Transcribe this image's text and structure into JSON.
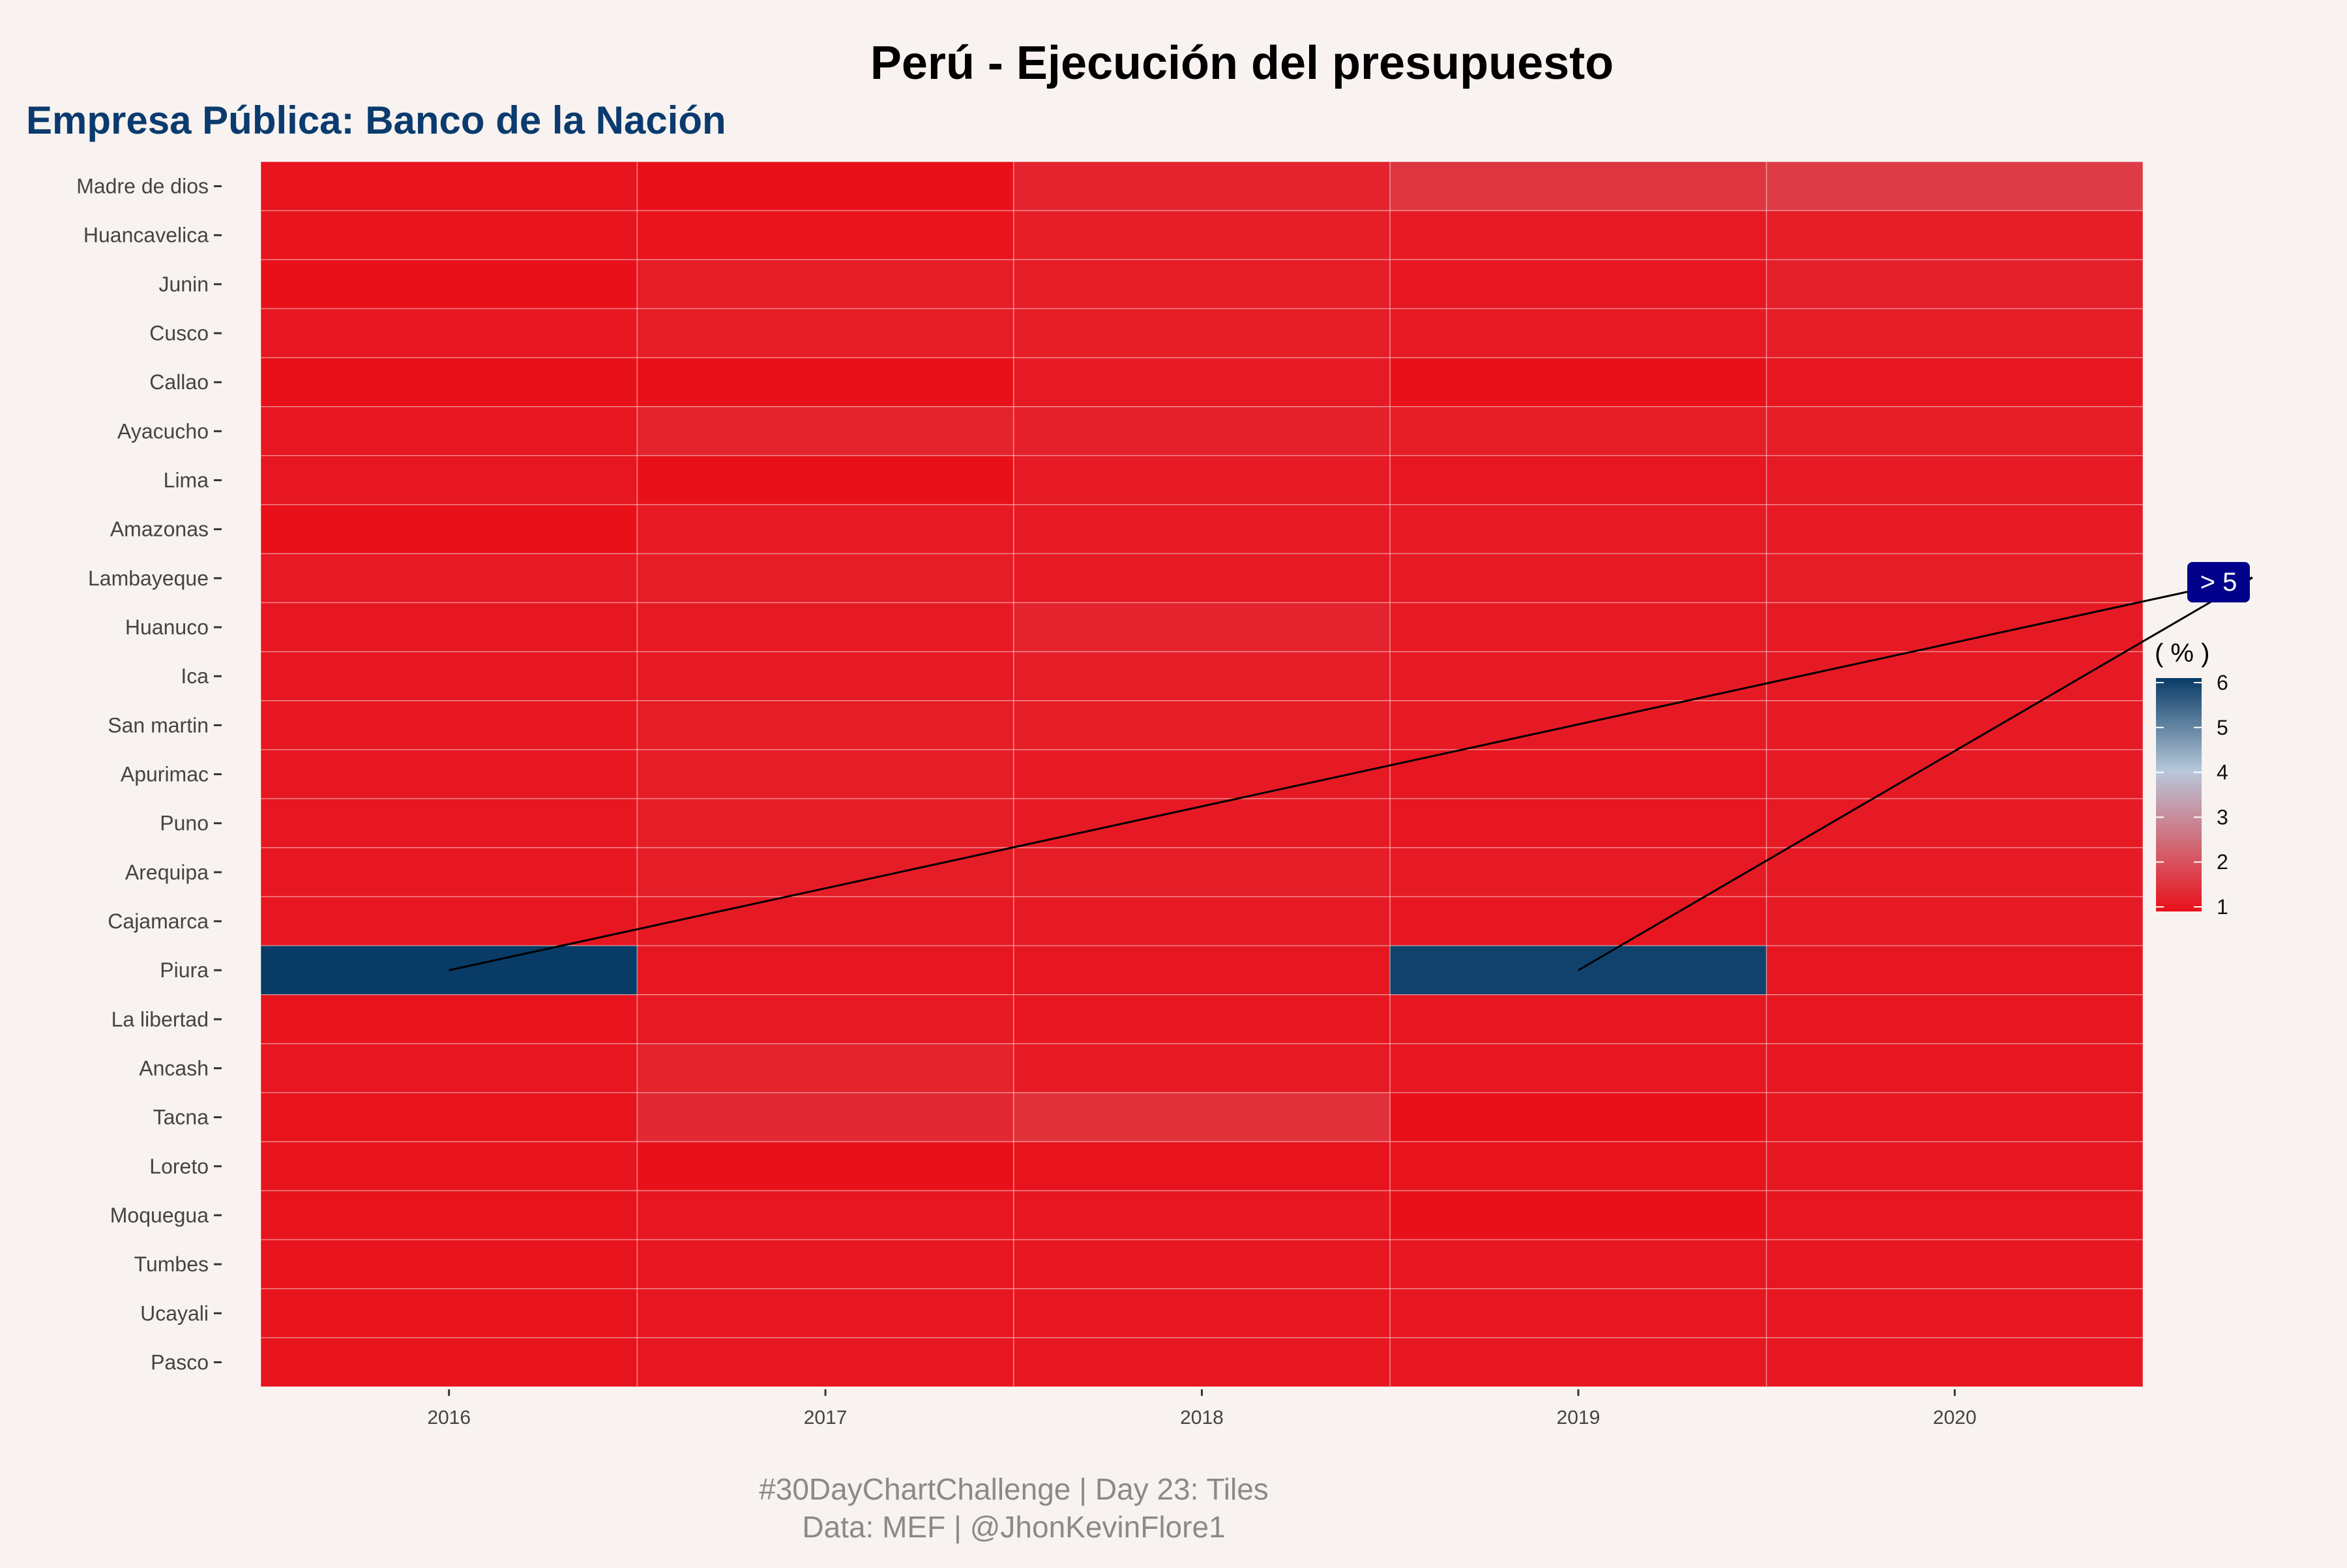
{
  "title": "Perú - Ejecución del presupuesto",
  "subtitle": "Empresa Pública: Banco de la Nación",
  "caption_line1": "#30DayChartChallenge | Day 23: Tiles",
  "caption_line2": "Data: MEF |  @JhonKevinFlore1",
  "annotation": "> 5",
  "colors": {
    "background": "#f8f3f0",
    "title": "#000000",
    "subtitle": "#0b3b6e",
    "caption": "#8a8a8a",
    "scale_low": "#e8111a",
    "scale_mid": "#b7c8da",
    "scale_high": "#083b66",
    "annotation_bg": "#00008b",
    "annotation_text": "#ffffff"
  },
  "chart_data": {
    "type": "heatmap",
    "x": [
      "2016",
      "2017",
      "2018",
      "2019",
      "2020"
    ],
    "y": [
      "Madre de dios",
      "Huancavelica",
      "Junin",
      "Cusco",
      "Callao",
      "Ayacucho",
      "Lima",
      "Amazonas",
      "Lambayeque",
      "Huanuco",
      "Ica",
      "San martin",
      "Apurimac",
      "Puno",
      "Arequipa",
      "Cajamarca",
      "Piura",
      "La libertad",
      "Ancash",
      "Tacna",
      "Loreto",
      "Moquegua",
      "Tumbes",
      "Ucayali",
      "Pasco"
    ],
    "values": [
      [
        1.05,
        0.95,
        1.3,
        1.6,
        1.7
      ],
      [
        1.05,
        1.05,
        1.2,
        1.15,
        1.2
      ],
      [
        1.0,
        1.2,
        1.2,
        1.1,
        1.25
      ],
      [
        1.1,
        1.2,
        1.2,
        1.15,
        1.2
      ],
      [
        0.95,
        0.75,
        1.15,
        0.75,
        1.1
      ],
      [
        1.1,
        1.3,
        1.25,
        1.2,
        1.2
      ],
      [
        1.1,
        0.9,
        1.15,
        1.1,
        1.15
      ],
      [
        1.0,
        1.15,
        1.15,
        1.15,
        1.15
      ],
      [
        1.15,
        1.2,
        1.15,
        1.15,
        1.2
      ],
      [
        1.1,
        1.15,
        1.3,
        1.15,
        1.15
      ],
      [
        1.1,
        1.15,
        1.2,
        1.15,
        1.15
      ],
      [
        1.1,
        1.2,
        1.2,
        1.15,
        1.15
      ],
      [
        1.1,
        1.2,
        1.15,
        1.1,
        1.15
      ],
      [
        1.1,
        1.2,
        1.15,
        1.1,
        1.15
      ],
      [
        1.1,
        1.2,
        1.2,
        1.15,
        1.15
      ],
      [
        1.1,
        1.15,
        1.15,
        1.1,
        1.15
      ],
      [
        6.0,
        1.1,
        1.1,
        5.9,
        1.1
      ],
      [
        1.05,
        1.15,
        1.1,
        1.1,
        1.1
      ],
      [
        1.1,
        1.3,
        1.15,
        1.1,
        1.1
      ],
      [
        1.05,
        1.4,
        1.5,
        1.0,
        1.1
      ],
      [
        1.05,
        1.0,
        1.05,
        1.05,
        1.1
      ],
      [
        1.05,
        1.1,
        1.1,
        1.0,
        1.1
      ],
      [
        1.05,
        1.1,
        1.1,
        1.1,
        1.1
      ],
      [
        1.05,
        1.1,
        1.1,
        1.1,
        1.1
      ],
      [
        1.05,
        1.1,
        1.1,
        1.1,
        1.1
      ]
    ],
    "legend_title": "( % )",
    "legend_ticks": [
      "1",
      "2",
      "3",
      "4",
      "5",
      "6"
    ],
    "color_range": [
      1,
      6
    ],
    "legend_position": "right",
    "highlights": [
      {
        "x": "2016",
        "y": "Piura"
      },
      {
        "x": "2019",
        "y": "Piura"
      }
    ]
  }
}
